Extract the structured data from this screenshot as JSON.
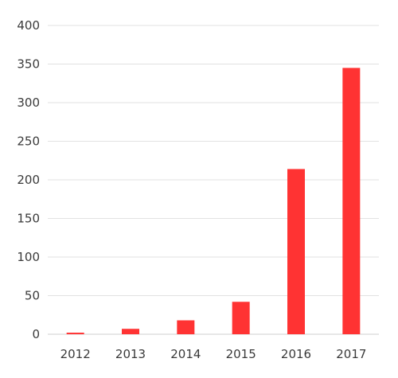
{
  "chart_data": {
    "type": "bar",
    "title": "",
    "xlabel": "",
    "ylabel": "",
    "categories": [
      "2012",
      "2013",
      "2014",
      "2015",
      "2016",
      "2017"
    ],
    "values": [
      2,
      7,
      18,
      42,
      214,
      345
    ],
    "ylim": [
      0,
      400
    ],
    "yticks": [
      0,
      50,
      100,
      150,
      200,
      250,
      300,
      350,
      400
    ],
    "grid": true,
    "legend": "none",
    "bar_color": "#ff3333",
    "gridline_color": "#e2e2e2",
    "text_color": "#3a3a3a"
  }
}
